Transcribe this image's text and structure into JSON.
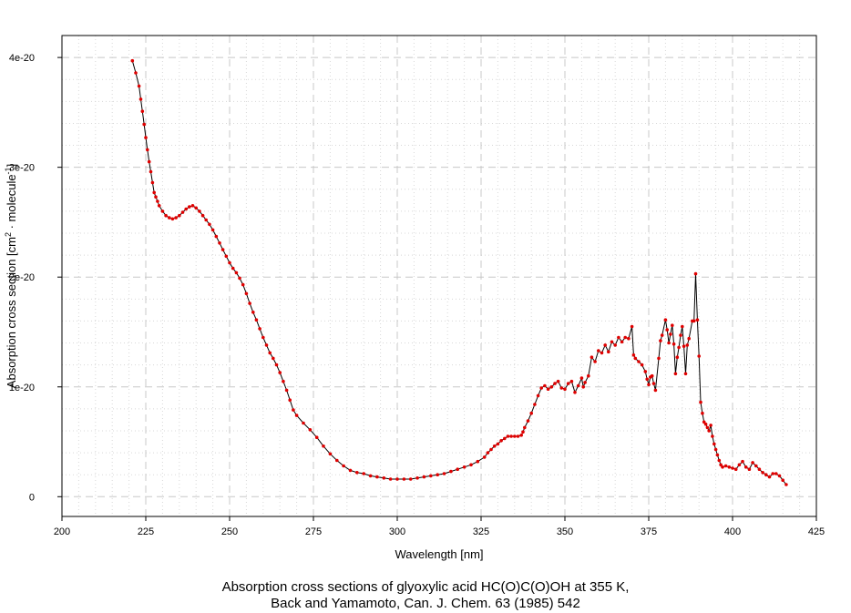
{
  "chart_data": {
    "type": "line",
    "xlabel": "Wavelength [nm]",
    "ylabel_prefix": "Absorption cross section [cm",
    "ylabel_sup1": "2",
    "ylabel_mid": " · molecule",
    "ylabel_sup2": "-1",
    "ylabel_suffix": "]",
    "xlim": [
      200,
      425
    ],
    "ylim": [
      -1.8e-21,
      4.2e-20
    ],
    "x_ticks": [
      200,
      225,
      250,
      275,
      300,
      325,
      350,
      375,
      400,
      425
    ],
    "y_ticks": [
      {
        "value": 0,
        "label": "0"
      },
      {
        "value": 1e-20,
        "label": "1e-20"
      },
      {
        "value": 2e-20,
        "label": "2e-20"
      },
      {
        "value": 3e-20,
        "label": "3e-20"
      },
      {
        "value": 4e-20,
        "label": "4e-20"
      }
    ],
    "grid": true,
    "colors": {
      "line": "#000000",
      "marker": "#e00000",
      "grid_major": "#c8c8c8",
      "grid_minor": "#d8d8d8"
    },
    "series": [
      {
        "unit_y": 1e-20,
        "points": [
          [
            221,
            3.97
          ],
          [
            222,
            3.86
          ],
          [
            223,
            3.74
          ],
          [
            223.5,
            3.62
          ],
          [
            224,
            3.51
          ],
          [
            224.5,
            3.39
          ],
          [
            225,
            3.27
          ],
          [
            225.5,
            3.16
          ],
          [
            226,
            3.05
          ],
          [
            226.5,
            2.96
          ],
          [
            227,
            2.86
          ],
          [
            227.5,
            2.77
          ],
          [
            228,
            2.73
          ],
          [
            228.5,
            2.69
          ],
          [
            229,
            2.65
          ],
          [
            230,
            2.6
          ],
          [
            231,
            2.56
          ],
          [
            232,
            2.54
          ],
          [
            233,
            2.53
          ],
          [
            234,
            2.54
          ],
          [
            235,
            2.56
          ],
          [
            236,
            2.59
          ],
          [
            237,
            2.62
          ],
          [
            238,
            2.64
          ],
          [
            239,
            2.65
          ],
          [
            240,
            2.63
          ],
          [
            241,
            2.6
          ],
          [
            242,
            2.56
          ],
          [
            243,
            2.52
          ],
          [
            244,
            2.48
          ],
          [
            245,
            2.43
          ],
          [
            246,
            2.37
          ],
          [
            247,
            2.31
          ],
          [
            248,
            2.25
          ],
          [
            249,
            2.19
          ],
          [
            250,
            2.13
          ],
          [
            251,
            2.08
          ],
          [
            252,
            2.04
          ],
          [
            253,
            1.99
          ],
          [
            254,
            1.93
          ],
          [
            255,
            1.85
          ],
          [
            256,
            1.76
          ],
          [
            257,
            1.68
          ],
          [
            258,
            1.61
          ],
          [
            259,
            1.53
          ],
          [
            260,
            1.45
          ],
          [
            261,
            1.38
          ],
          [
            262,
            1.31
          ],
          [
            263,
            1.26
          ],
          [
            264,
            1.2
          ],
          [
            265,
            1.13
          ],
          [
            266,
            1.05
          ],
          [
            267,
            0.97
          ],
          [
            268,
            0.88
          ],
          [
            269,
            0.79
          ],
          [
            270,
            0.74
          ],
          [
            272,
            0.67
          ],
          [
            274,
            0.61
          ],
          [
            276,
            0.54
          ],
          [
            278,
            0.46
          ],
          [
            280,
            0.39
          ],
          [
            282,
            0.33
          ],
          [
            284,
            0.28
          ],
          [
            286,
            0.24
          ],
          [
            288,
            0.22
          ],
          [
            290,
            0.21
          ],
          [
            292,
            0.19
          ],
          [
            294,
            0.18
          ],
          [
            296,
            0.17
          ],
          [
            298,
            0.16
          ],
          [
            300,
            0.16
          ],
          [
            302,
            0.16
          ],
          [
            304,
            0.16
          ],
          [
            306,
            0.17
          ],
          [
            308,
            0.18
          ],
          [
            310,
            0.19
          ],
          [
            312,
            0.2
          ],
          [
            314,
            0.21
          ],
          [
            316,
            0.23
          ],
          [
            318,
            0.25
          ],
          [
            320,
            0.27
          ],
          [
            322,
            0.29
          ],
          [
            324,
            0.32
          ],
          [
            326,
            0.36
          ],
          [
            327,
            0.4
          ],
          [
            328,
            0.43
          ],
          [
            329,
            0.46
          ],
          [
            330,
            0.48
          ],
          [
            331,
            0.51
          ],
          [
            332,
            0.53
          ],
          [
            333,
            0.55
          ],
          [
            334,
            0.55
          ],
          [
            335,
            0.55
          ],
          [
            336,
            0.55
          ],
          [
            337,
            0.56
          ],
          [
            337.5,
            0.59
          ],
          [
            338,
            0.63
          ],
          [
            339,
            0.69
          ],
          [
            340,
            0.76
          ],
          [
            341,
            0.84
          ],
          [
            342,
            0.92
          ],
          [
            343,
            0.99
          ],
          [
            344,
            1.01
          ],
          [
            345,
            0.98
          ],
          [
            346,
            1.0
          ],
          [
            347,
            1.03
          ],
          [
            348,
            1.05
          ],
          [
            349,
            0.99
          ],
          [
            350,
            0.98
          ],
          [
            351,
            1.03
          ],
          [
            352,
            1.05
          ],
          [
            353,
            0.95
          ],
          [
            354,
            1.01
          ],
          [
            355,
            1.08
          ],
          [
            355.5,
            1.0
          ],
          [
            356,
            1.04
          ],
          [
            357,
            1.1
          ],
          [
            358,
            1.27
          ],
          [
            359,
            1.23
          ],
          [
            360,
            1.33
          ],
          [
            361,
            1.31
          ],
          [
            362,
            1.38
          ],
          [
            363,
            1.32
          ],
          [
            364,
            1.41
          ],
          [
            365,
            1.38
          ],
          [
            366,
            1.45
          ],
          [
            367,
            1.41
          ],
          [
            368,
            1.45
          ],
          [
            369,
            1.44
          ],
          [
            370,
            1.55
          ],
          [
            370.5,
            1.29
          ],
          [
            371,
            1.26
          ],
          [
            372,
            1.23
          ],
          [
            373,
            1.2
          ],
          [
            374,
            1.14
          ],
          [
            374.5,
            1.07
          ],
          [
            375,
            1.02
          ],
          [
            375.5,
            1.09
          ],
          [
            376,
            1.1
          ],
          [
            376.5,
            1.03
          ],
          [
            377,
            0.97
          ],
          [
            378,
            1.26
          ],
          [
            378.5,
            1.42
          ],
          [
            379,
            1.47
          ],
          [
            380,
            1.61
          ],
          [
            380.5,
            1.52
          ],
          [
            381,
            1.4
          ],
          [
            381.5,
            1.48
          ],
          [
            382,
            1.56
          ],
          [
            382.5,
            1.39
          ],
          [
            383,
            1.12
          ],
          [
            383.5,
            1.27
          ],
          [
            384,
            1.36
          ],
          [
            384.5,
            1.47
          ],
          [
            385,
            1.55
          ],
          [
            385.5,
            1.37
          ],
          [
            386,
            1.12
          ],
          [
            386.5,
            1.38
          ],
          [
            387,
            1.44
          ],
          [
            388,
            1.6
          ],
          [
            388.5,
            1.6
          ],
          [
            389,
            2.03
          ],
          [
            389.5,
            1.61
          ],
          [
            390,
            1.28
          ],
          [
            390.5,
            0.86
          ],
          [
            391,
            0.76
          ],
          [
            391.5,
            0.68
          ],
          [
            392,
            0.66
          ],
          [
            392.5,
            0.63
          ],
          [
            393,
            0.6
          ],
          [
            393.5,
            0.65
          ],
          [
            394,
            0.55
          ],
          [
            394.5,
            0.48
          ],
          [
            395,
            0.43
          ],
          [
            395.5,
            0.38
          ],
          [
            396,
            0.33
          ],
          [
            396.5,
            0.29
          ],
          [
            397,
            0.27
          ],
          [
            398,
            0.28
          ],
          [
            399,
            0.27
          ],
          [
            400,
            0.26
          ],
          [
            401,
            0.25
          ],
          [
            402,
            0.29
          ],
          [
            403,
            0.32
          ],
          [
            404,
            0.27
          ],
          [
            405,
            0.25
          ],
          [
            406,
            0.31
          ],
          [
            407,
            0.28
          ],
          [
            408,
            0.25
          ],
          [
            409,
            0.22
          ],
          [
            410,
            0.2
          ],
          [
            411,
            0.18
          ],
          [
            412,
            0.21
          ],
          [
            413,
            0.21
          ],
          [
            414,
            0.19
          ],
          [
            415,
            0.15
          ],
          [
            416,
            0.11
          ]
        ]
      }
    ]
  },
  "caption": {
    "line1": "Absorption cross sections of glyoxylic acid HC(O)C(O)OH at 355 K,",
    "line2": "Back and Yamamoto, Can. J. Chem. 63 (1985) 542"
  }
}
